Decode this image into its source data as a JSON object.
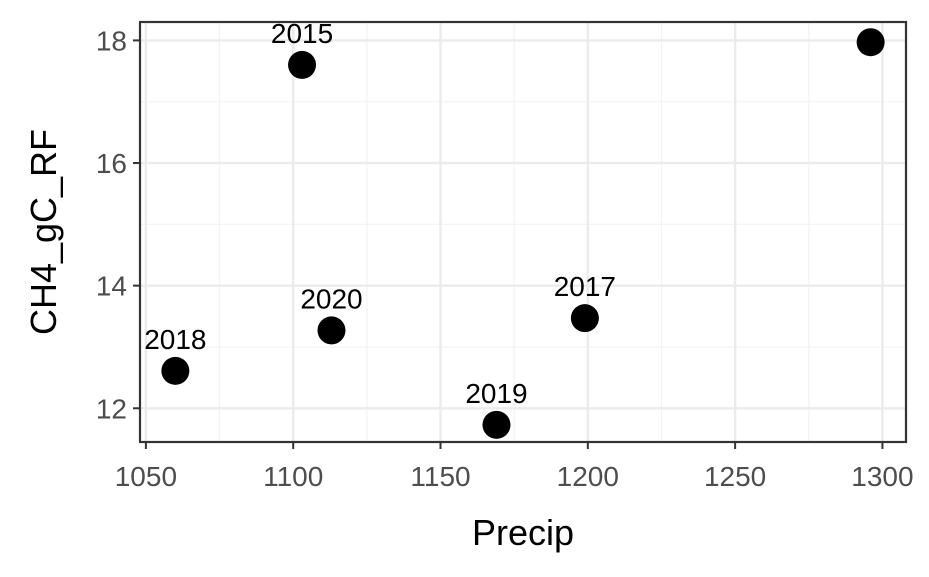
{
  "chart_data": {
    "type": "scatter",
    "title": "",
    "xlabel": "Precip",
    "ylabel": "CH4_gC_RF",
    "xlim": [
      1048,
      1308
    ],
    "ylim": [
      11.45,
      18.3
    ],
    "x_ticks": [
      1050,
      1100,
      1150,
      1200,
      1250,
      1300
    ],
    "y_ticks": [
      12,
      14,
      16,
      18
    ],
    "grid": true,
    "legend": "none",
    "points": [
      {
        "x": 1103,
        "y": 17.6,
        "label": "2015"
      },
      {
        "x": 1296,
        "y": 17.97,
        "label": ""
      },
      {
        "x": 1199,
        "y": 13.47,
        "label": "2017"
      },
      {
        "x": 1060,
        "y": 12.61,
        "label": "2018"
      },
      {
        "x": 1169,
        "y": 11.73,
        "label": "2019"
      },
      {
        "x": 1113,
        "y": 13.27,
        "label": "2020"
      }
    ]
  },
  "colors": {
    "point": "#000000",
    "grid_major": "#ebebeb",
    "grid_minor": "#f2f2f2",
    "panel_border": "#333333",
    "tick_text": "#4d4d4d"
  }
}
